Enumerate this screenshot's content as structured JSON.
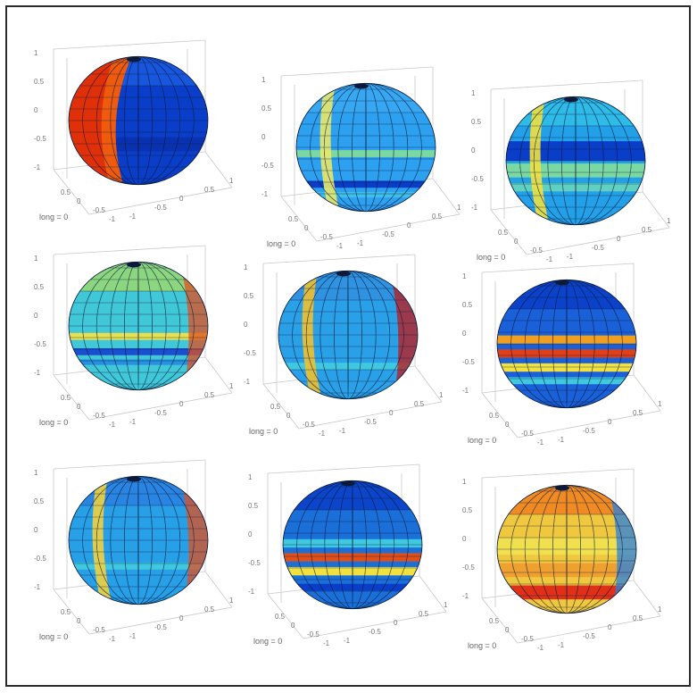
{
  "panels": [
    {
      "caption": "long = 0",
      "yticks": [
        "1",
        "0.5",
        "0",
        "-0.5",
        "-1"
      ],
      "xticks": [
        "0.5",
        "0",
        "-0.5",
        "-1"
      ],
      "zticks": [
        "-1",
        "-0.5",
        "0",
        "0.5",
        "1"
      ],
      "colors": {
        "base": "#0a3dc8",
        "cap": "#1a5ae0",
        "bands": [
          {
            "y": 0.62,
            "h": 0.1,
            "c": "#0a32b0"
          }
        ],
        "left": "#e0300a",
        "left2": "#f06010"
      }
    },
    {
      "caption": "long = 0",
      "yticks": [
        "1",
        "0.5",
        "0",
        "-0.5",
        "-1"
      ],
      "xticks": [
        "0.5",
        "0",
        "-0.5",
        "-1"
      ],
      "zticks": [
        "-1",
        "-0.5",
        "0",
        "0.5",
        "1"
      ],
      "colors": {
        "base": "#2da0f0",
        "cap": "#3aa8f2",
        "bands": [
          {
            "y": 0.52,
            "h": 0.05,
            "c": "#7ad8a0"
          },
          {
            "y": 0.74,
            "h": 0.05,
            "c": "#0a3dc8"
          },
          {
            "y": 0.82,
            "h": 0.04,
            "c": "#40c0e8"
          }
        ],
        "stripe": "#e8e86a"
      }
    },
    {
      "caption": "long = 0",
      "yticks": [
        "1",
        "0.5",
        "0",
        "-0.5",
        "-1"
      ],
      "xticks": [
        "0.5",
        "0",
        "-0.5",
        "-1"
      ],
      "zticks": [
        "-1",
        "-0.5",
        "0",
        "0.5",
        "1"
      ],
      "colors": {
        "base": "#22a0e8",
        "cap": "#30c0e8",
        "bands": [
          {
            "y": 0.36,
            "h": 0.14,
            "c": "#0a3dc8"
          },
          {
            "y": 0.52,
            "h": 0.1,
            "c": "#7ad8a0"
          },
          {
            "y": 0.66,
            "h": 0.06,
            "c": "#60d0c0"
          }
        ],
        "stripe": "#f0e040"
      }
    },
    {
      "caption": "long = 0",
      "yticks": [
        "1",
        "0.5",
        "0",
        "-0.5",
        "-1"
      ],
      "xticks": [
        "0.5",
        "0",
        "-0.5",
        "-1"
      ],
      "zticks": [
        "-1",
        "-0.5",
        "0",
        "0.5",
        "1"
      ],
      "colors": {
        "base": "#40c8d8",
        "cap": "#9ad870",
        "bands": [
          {
            "y": 0.55,
            "h": 0.05,
            "c": "#e8e050"
          },
          {
            "y": 0.66,
            "h": 0.05,
            "c": "#1a50d0"
          },
          {
            "y": 0.74,
            "h": 0.04,
            "c": "#2890e0"
          }
        ],
        "right": "#e05020"
      }
    },
    {
      "caption": "long = 0",
      "yticks": [
        "1",
        "0.5",
        "0",
        "-0.5",
        "-1"
      ],
      "xticks": [
        "0.5",
        "0",
        "-0.5",
        "-1"
      ],
      "zticks": [
        "-1",
        "-0.5",
        "0",
        "0.5",
        "1"
      ],
      "colors": {
        "base": "#2aa0e8",
        "cap": "#3090e0",
        "bands": [
          {
            "y": 0.7,
            "h": 0.05,
            "c": "#40c8e0"
          }
        ],
        "stripe": "#f0c030",
        "right": "#c01818"
      }
    },
    {
      "caption": "long = 0",
      "yticks": [
        "1",
        "0.5",
        "0",
        "-0.5",
        "-1"
      ],
      "xticks": [
        "0.5",
        "0",
        "-0.5",
        "-1"
      ],
      "zticks": [
        "-1",
        "-0.5",
        "0",
        "0.5",
        "1"
      ],
      "colors": {
        "base": "#1a60d8",
        "cap": "#0a3dc8",
        "bands": [
          {
            "y": 0.44,
            "h": 0.06,
            "c": "#f0a020"
          },
          {
            "y": 0.54,
            "h": 0.06,
            "c": "#e04018"
          },
          {
            "y": 0.64,
            "h": 0.06,
            "c": "#f0e040"
          },
          {
            "y": 0.74,
            "h": 0.05,
            "c": "#40c8e0"
          }
        ]
      }
    },
    {
      "caption": "long = 0",
      "yticks": [
        "1",
        "0.5",
        "0",
        "-0.5",
        "-1"
      ],
      "xticks": [
        "0.5",
        "0",
        "-0.5",
        "-1"
      ],
      "zticks": [
        "-1",
        "-0.5",
        "0",
        "0.5",
        "1"
      ],
      "colors": {
        "base": "#28a0e8",
        "cap": "#2a80e0",
        "bands": [
          {
            "y": 0.66,
            "h": 0.05,
            "c": "#40c8e0"
          }
        ],
        "stripe": "#f0d040",
        "right": "#e05020"
      }
    },
    {
      "caption": "long = 0",
      "yticks": [
        "1",
        "0.5",
        "0",
        "-0.5",
        "-1"
      ],
      "xticks": [
        "0.5",
        "0",
        "-0.5",
        "-1"
      ],
      "zticks": [
        "-1",
        "-0.5",
        "0",
        "0.5",
        "1"
      ],
      "colors": {
        "base": "#1a70d8",
        "cap": "#0a3dc8",
        "bands": [
          {
            "y": 0.46,
            "h": 0.06,
            "c": "#40c8e0"
          },
          {
            "y": 0.56,
            "h": 0.06,
            "c": "#e05018"
          },
          {
            "y": 0.66,
            "h": 0.06,
            "c": "#f0e040"
          },
          {
            "y": 0.78,
            "h": 0.05,
            "c": "#0a3dc8"
          }
        ]
      }
    },
    {
      "caption": "long = 0",
      "yticks": [
        "1",
        "0.5",
        "0",
        "-0.5",
        "-1"
      ],
      "xticks": [
        "0.5",
        "0",
        "-0.5",
        "-1"
      ],
      "zticks": [
        "-1",
        "-0.5",
        "0",
        "0.5",
        "1"
      ],
      "colors": {
        "base": "#f0c840",
        "cap": "#f08020",
        "bands": [
          {
            "y": 0.42,
            "h": 0.12,
            "c": "#f0e050"
          },
          {
            "y": 0.6,
            "h": 0.1,
            "c": "#f0a030"
          },
          {
            "y": 0.76,
            "h": 0.1,
            "c": "#e03018"
          }
        ],
        "right": "#2a80e0"
      }
    }
  ]
}
